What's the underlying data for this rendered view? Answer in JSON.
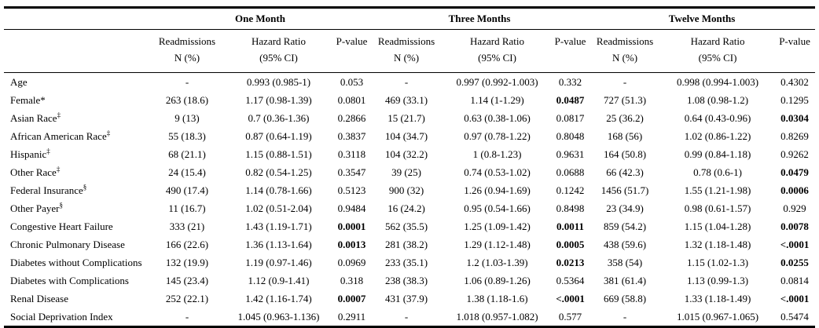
{
  "table": {
    "groups": [
      "One Month",
      "Three Months",
      "Twelve Months"
    ],
    "headers": {
      "readmissions": [
        "Readmissions",
        "N (%)"
      ],
      "hazard_ratio": [
        "Hazard Ratio",
        "(95% CI)"
      ],
      "p_value": "P-value"
    },
    "rows": [
      {
        "label": "Age",
        "sup": "",
        "cells": [
          {
            "n": "-",
            "hr": "0.993 (0.985-1)",
            "p": "0.053",
            "p_bold": false
          },
          {
            "n": "-",
            "hr": "0.997 (0.992-1.003)",
            "p": "0.332",
            "p_bold": false
          },
          {
            "n": "-",
            "hr": "0.998 (0.994-1.003)",
            "p": "0.4302",
            "p_bold": false
          }
        ]
      },
      {
        "label": "Female*",
        "sup": "",
        "cells": [
          {
            "n": "263 (18.6)",
            "hr": "1.17 (0.98-1.39)",
            "p": "0.0801",
            "p_bold": false
          },
          {
            "n": "469 (33.1)",
            "hr": "1.14 (1-1.29)",
            "p": "0.0487",
            "p_bold": true
          },
          {
            "n": "727 (51.3)",
            "hr": "1.08 (0.98-1.2)",
            "p": "0.1295",
            "p_bold": false
          }
        ]
      },
      {
        "label": "Asian Race",
        "sup": "‡",
        "cells": [
          {
            "n": "9 (13)",
            "hr": "0.7 (0.36-1.36)",
            "p": "0.2866",
            "p_bold": false
          },
          {
            "n": "15 (21.7)",
            "hr": "0.63 (0.38-1.06)",
            "p": "0.0817",
            "p_bold": false
          },
          {
            "n": "25 (36.2)",
            "hr": "0.64 (0.43-0.96)",
            "p": "0.0304",
            "p_bold": true
          }
        ]
      },
      {
        "label": "African American Race",
        "sup": "‡",
        "cells": [
          {
            "n": "55 (18.3)",
            "hr": "0.87 (0.64-1.19)",
            "p": "0.3837",
            "p_bold": false
          },
          {
            "n": "104 (34.7)",
            "hr": "0.97 (0.78-1.22)",
            "p": "0.8048",
            "p_bold": false
          },
          {
            "n": "168 (56)",
            "hr": "1.02 (0.86-1.22)",
            "p": "0.8269",
            "p_bold": false
          }
        ]
      },
      {
        "label": "Hispanic",
        "sup": "‡",
        "cells": [
          {
            "n": "68 (21.1)",
            "hr": "1.15 (0.88-1.51)",
            "p": "0.3118",
            "p_bold": false
          },
          {
            "n": "104 (32.2)",
            "hr": "1 (0.8-1.23)",
            "p": "0.9631",
            "p_bold": false
          },
          {
            "n": "164 (50.8)",
            "hr": "0.99 (0.84-1.18)",
            "p": "0.9262",
            "p_bold": false
          }
        ]
      },
      {
        "label": "Other Race",
        "sup": "‡",
        "cells": [
          {
            "n": "24 (15.4)",
            "hr": "0.82 (0.54-1.25)",
            "p": "0.3547",
            "p_bold": false
          },
          {
            "n": "39 (25)",
            "hr": "0.74 (0.53-1.02)",
            "p": "0.0688",
            "p_bold": false
          },
          {
            "n": "66 (42.3)",
            "hr": "0.78 (0.6-1)",
            "p": "0.0479",
            "p_bold": true
          }
        ]
      },
      {
        "label": "Federal Insurance",
        "sup": "§",
        "cells": [
          {
            "n": "490 (17.4)",
            "hr": "1.14 (0.78-1.66)",
            "p": "0.5123",
            "p_bold": false
          },
          {
            "n": "900 (32)",
            "hr": "1.26 (0.94-1.69)",
            "p": "0.1242",
            "p_bold": false
          },
          {
            "n": "1456 (51.7)",
            "hr": "1.55 (1.21-1.98)",
            "p": "0.0006",
            "p_bold": true
          }
        ]
      },
      {
        "label": "Other Payer",
        "sup": "§",
        "cells": [
          {
            "n": "11 (16.7)",
            "hr": "1.02 (0.51-2.04)",
            "p": "0.9484",
            "p_bold": false
          },
          {
            "n": "16 (24.2)",
            "hr": "0.95 (0.54-1.66)",
            "p": "0.8498",
            "p_bold": false
          },
          {
            "n": "23 (34.9)",
            "hr": "0.98 (0.61-1.57)",
            "p": "0.929",
            "p_bold": false
          }
        ]
      },
      {
        "label": "Congestive Heart Failure",
        "sup": "",
        "cells": [
          {
            "n": "333 (21)",
            "hr": "1.43 (1.19-1.71)",
            "p": "0.0001",
            "p_bold": true
          },
          {
            "n": "562 (35.5)",
            "hr": "1.25 (1.09-1.42)",
            "p": "0.0011",
            "p_bold": true
          },
          {
            "n": "859 (54.2)",
            "hr": "1.15 (1.04-1.28)",
            "p": "0.0078",
            "p_bold": true
          }
        ]
      },
      {
        "label": "Chronic Pulmonary Disease",
        "sup": "",
        "cells": [
          {
            "n": "166 (22.6)",
            "hr": "1.36 (1.13-1.64)",
            "p": "0.0013",
            "p_bold": true
          },
          {
            "n": "281 (38.2)",
            "hr": "1.29 (1.12-1.48)",
            "p": "0.0005",
            "p_bold": true
          },
          {
            "n": "438 (59.6)",
            "hr": "1.32 (1.18-1.48)",
            "p": "<.0001",
            "p_bold": true
          }
        ]
      },
      {
        "label": "Diabetes without Complications",
        "sup": "",
        "cells": [
          {
            "n": "132 (19.9)",
            "hr": "1.19 (0.97-1.46)",
            "p": "0.0969",
            "p_bold": false
          },
          {
            "n": "233 (35.1)",
            "hr": "1.2 (1.03-1.39)",
            "p": "0.0213",
            "p_bold": true
          },
          {
            "n": "358 (54)",
            "hr": "1.15 (1.02-1.3)",
            "p": "0.0255",
            "p_bold": true
          }
        ]
      },
      {
        "label": "Diabetes with Complications",
        "sup": "",
        "cells": [
          {
            "n": "145 (23.4)",
            "hr": "1.12 (0.9-1.41)",
            "p": "0.318",
            "p_bold": false
          },
          {
            "n": "238 (38.3)",
            "hr": "1.06 (0.89-1.26)",
            "p": "0.5364",
            "p_bold": false
          },
          {
            "n": "381 (61.4)",
            "hr": "1.13 (0.99-1.3)",
            "p": "0.0814",
            "p_bold": false
          }
        ]
      },
      {
        "label": "Renal Disease",
        "sup": "",
        "cells": [
          {
            "n": "252 (22.1)",
            "hr": "1.42 (1.16-1.74)",
            "p": "0.0007",
            "p_bold": true
          },
          {
            "n": "431 (37.9)",
            "hr": "1.38 (1.18-1.6)",
            "p": "<.0001",
            "p_bold": true
          },
          {
            "n": "669 (58.8)",
            "hr": "1.33 (1.18-1.49)",
            "p": "<.0001",
            "p_bold": true
          }
        ]
      },
      {
        "label": "Social Deprivation Index",
        "sup": "",
        "cells": [
          {
            "n": "-",
            "hr": "1.045 (0.963-1.136)",
            "p": "0.2911",
            "p_bold": false
          },
          {
            "n": "-",
            "hr": "1.018 (0.957-1.082)",
            "p": "0.577",
            "p_bold": false
          },
          {
            "n": "-",
            "hr": "1.015 (0.967-1.065)",
            "p": "0.5474",
            "p_bold": false
          }
        ]
      }
    ]
  }
}
